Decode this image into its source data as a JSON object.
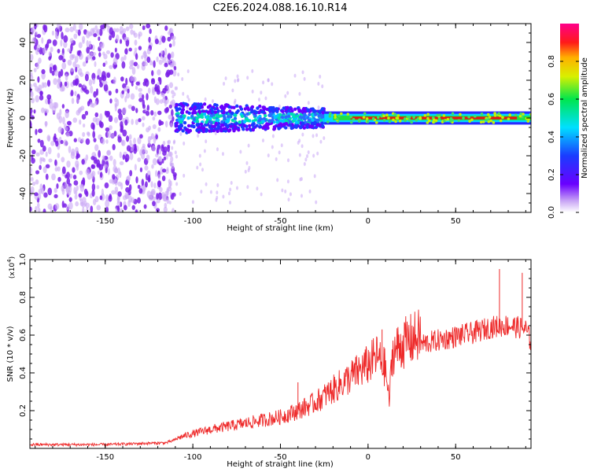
{
  "title": "C2E6.2024.088.16.10.R14",
  "colors": {
    "snr_line": "#ee2a2a",
    "scatter": "#7a1fe8",
    "scatter_light": "#c9a6f5"
  },
  "chart_data": [
    {
      "type": "heatmap",
      "xlabel": "Height of straight line (km)",
      "ylabel": "Frequency (Hz)",
      "xlim": [
        -193,
        93
      ],
      "ylim": [
        -50,
        50
      ],
      "xticks": [
        -150,
        -100,
        -50,
        0,
        50
      ],
      "yticks": [
        -40,
        -20,
        0,
        20,
        40
      ],
      "colorbar": {
        "label": "Normalized spectral amplitude",
        "range": [
          0,
          1
        ],
        "ticks": [
          0.0,
          0.2,
          0.4,
          0.6,
          0.8
        ],
        "tick_labels": [
          "0.0",
          "0.2",
          "0.4",
          "0.6",
          "0.8"
        ],
        "colormap": "rainbow (white-purple-blue-cyan-green-yellow-red-magenta)"
      },
      "regions": [
        {
          "x_range": [
            -193,
            -110
          ],
          "freq_range": [
            -50,
            50
          ],
          "amplitude": "low (scattered 0.05-0.25)"
        },
        {
          "x_range": [
            -110,
            -25
          ],
          "freq_range": [
            -8,
            8
          ],
          "amplitude": "0.1-0.5"
        },
        {
          "x_range": [
            -25,
            93
          ],
          "freq_range": [
            -3,
            3
          ],
          "amplitude": "peak ~1.0 at 0 Hz"
        }
      ],
      "grid": false
    },
    {
      "type": "line",
      "xlabel": "Height of straight line (km)",
      "ylabel": "SNR (10 * v/v)",
      "y_multiplier": "(x10^4)",
      "xlim": [
        -193,
        93
      ],
      "ylim": [
        0,
        1.0
      ],
      "xticks": [
        -150,
        -100,
        -50,
        0,
        50
      ],
      "yticks": [
        0.2,
        0.4,
        0.6,
        0.8,
        1.0
      ],
      "series": [
        {
          "envelope_x": [
            -193,
            -150,
            -115,
            -105,
            -90,
            -70,
            -50,
            -40,
            -30,
            -20,
            -10,
            0,
            5,
            10,
            12,
            14,
            20,
            30,
            40,
            50,
            60,
            70,
            80,
            90,
            93
          ],
          "envelope_y": [
            0.02,
            0.02,
            0.03,
            0.06,
            0.09,
            0.12,
            0.15,
            0.18,
            0.22,
            0.28,
            0.34,
            0.4,
            0.44,
            0.38,
            0.22,
            0.46,
            0.5,
            0.54,
            0.56,
            0.58,
            0.6,
            0.63,
            0.64,
            0.62,
            0.55
          ],
          "peak_values": [
            [
              75,
              0.95
            ],
            [
              88,
              0.93
            ],
            [
              8,
              0.63
            ],
            [
              -40,
              0.35
            ]
          ]
        }
      ],
      "grid": false
    }
  ]
}
